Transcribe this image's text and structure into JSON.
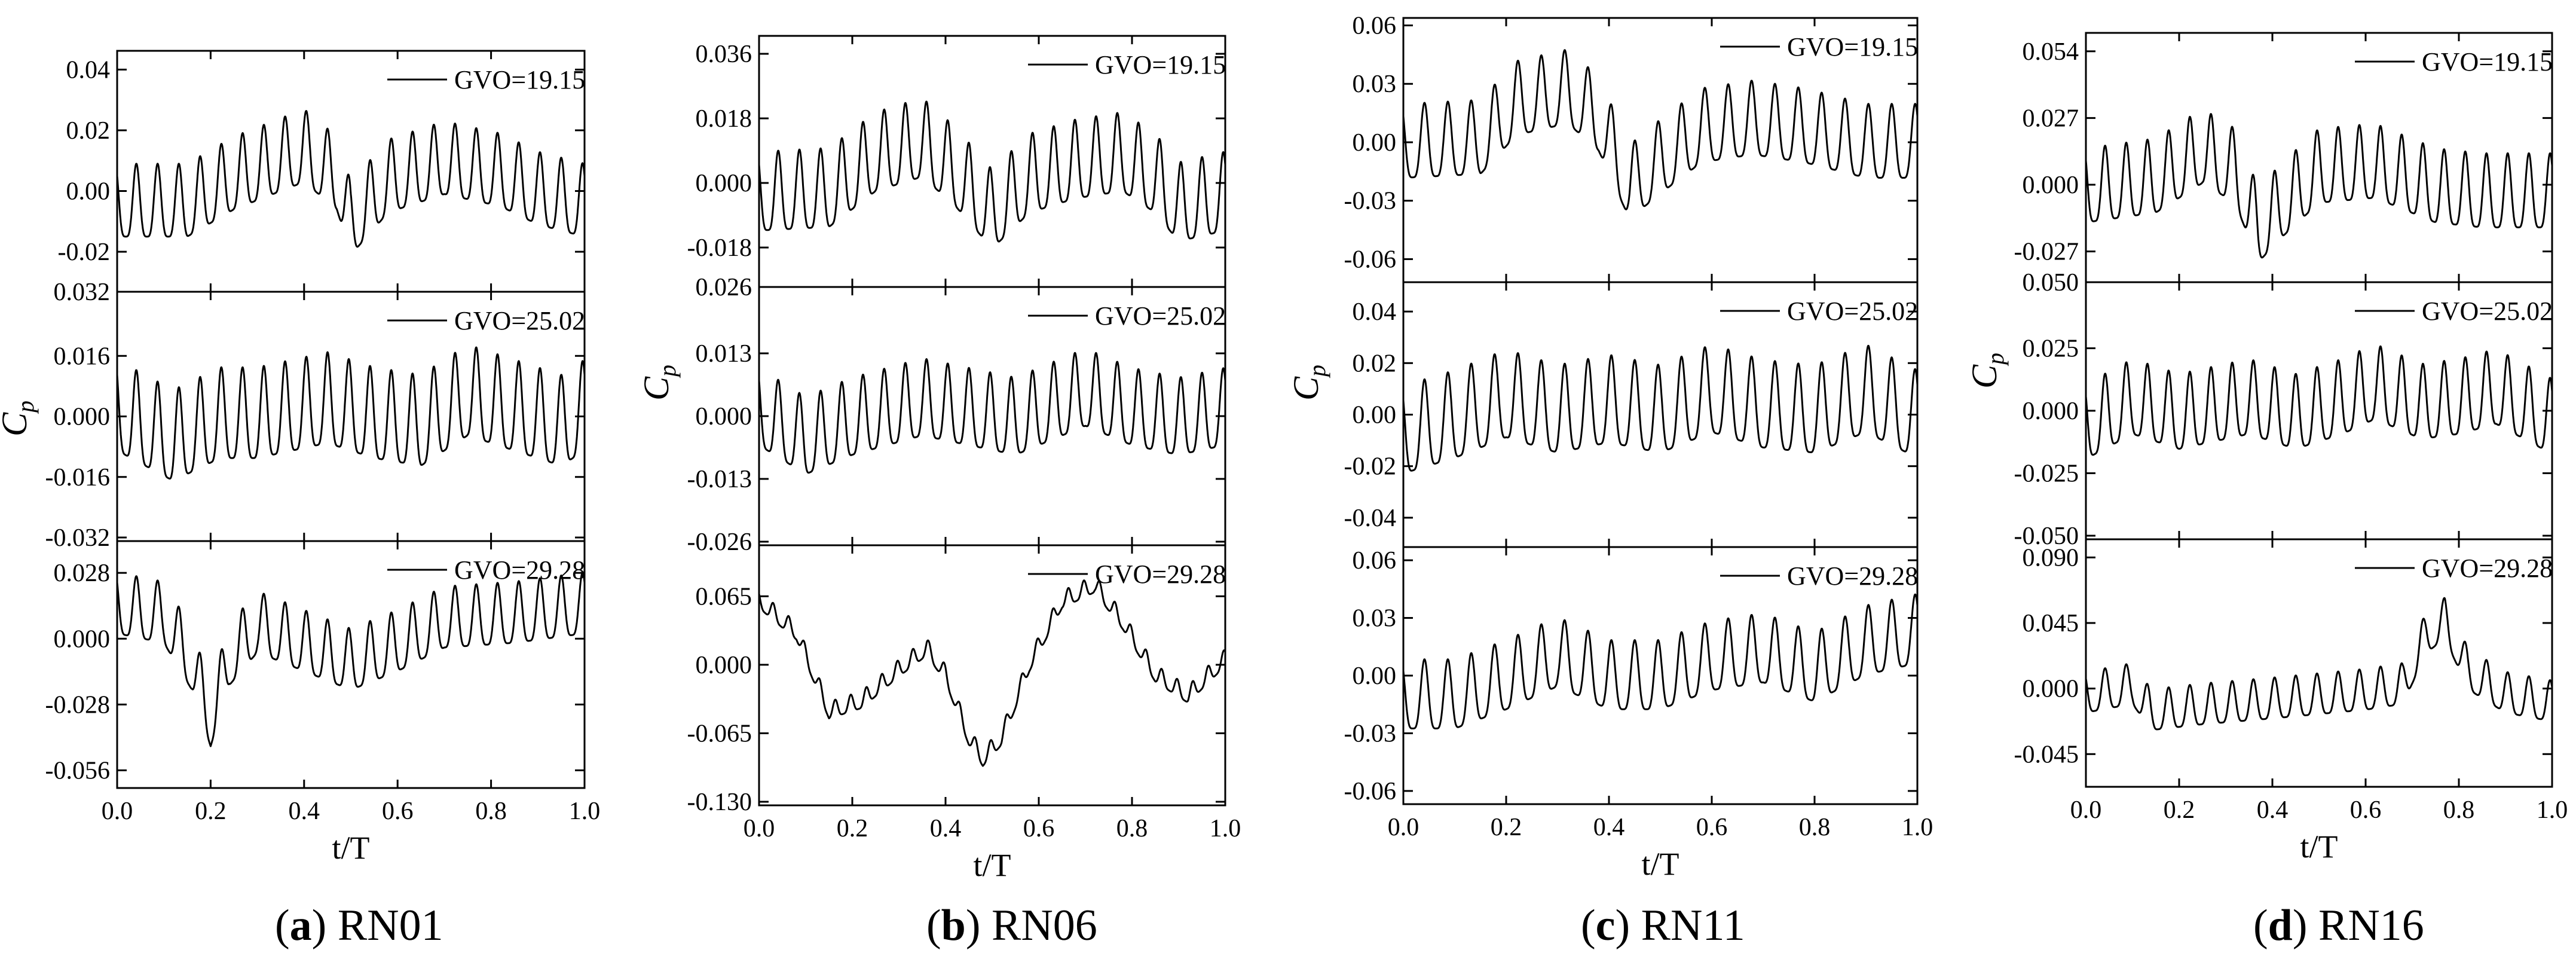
{
  "xlabel": "t/T",
  "ylabel_main": "C",
  "ylabel_sub": "p",
  "chart_data": [
    {
      "type": "line",
      "caption_letter": "(a)",
      "caption_text": "RN01",
      "x_range": [
        0,
        1
      ],
      "x_ticks": [
        0,
        0.2,
        0.4,
        0.6,
        0.8,
        1
      ],
      "x_tick_labels": [
        "0.0",
        "0.2",
        "0.4",
        "0.6",
        "0.8",
        "1.0"
      ],
      "panels": [
        {
          "legend": "GVO=19.15",
          "ylim": [
            -0.032,
            0.045
          ],
          "yticks": [
            -0.02,
            0,
            0.02,
            0.04
          ],
          "ytick_labels": [
            "-0.02",
            "0.00",
            "0.02",
            "0.04"
          ],
          "top_label": "",
          "osc": {
            "n": 22,
            "amp": 0.012,
            "envelope": [
              [
                0,
                -0.006
              ],
              [
                0.15,
                -0.006
              ],
              [
                0.25,
                0.003
              ],
              [
                0.4,
                0.012
              ],
              [
                0.47,
                0.003
              ],
              [
                0.5,
                -0.012
              ],
              [
                0.58,
                0.002
              ],
              [
                0.7,
                0.008
              ],
              [
                0.82,
                0.004
              ],
              [
                0.9,
                -0.002
              ],
              [
                1,
                -0.006
              ]
            ]
          }
        },
        {
          "legend": "GVO=25.02",
          "ylim": [
            -0.032,
            0.032
          ],
          "yticks": [
            -0.032,
            -0.016,
            0,
            0.016
          ],
          "ytick_labels": [
            "-0.032",
            "-0.016",
            "0.000",
            "0.016"
          ],
          "top_label": "0.032",
          "osc": {
            "n": 22,
            "amp": 0.012,
            "envelope": [
              [
                0,
                0.0
              ],
              [
                0.12,
                -0.008
              ],
              [
                0.22,
                -0.002
              ],
              [
                0.3,
                -0.002
              ],
              [
                0.45,
                0.002
              ],
              [
                0.55,
                -0.002
              ],
              [
                0.65,
                -0.004
              ],
              [
                0.75,
                0.004
              ],
              [
                0.85,
                0.0
              ],
              [
                0.95,
                -0.004
              ],
              [
                1,
                0.0
              ]
            ]
          }
        },
        {
          "legend": "GVO=29.28",
          "ylim": [
            -0.062,
            0.04
          ],
          "yticks": [
            -0.056,
            -0.028,
            0,
            0.028
          ],
          "ytick_labels": [
            "-0.056",
            "-0.028",
            "0.000",
            "0.028"
          ],
          "top_label": "",
          "osc": {
            "n": 22,
            "amp": 0.013,
            "envelope": [
              [
                0,
                0.012
              ],
              [
                0.1,
                0.008
              ],
              [
                0.16,
                -0.012
              ],
              [
                0.2,
                -0.036
              ],
              [
                0.24,
                -0.01
              ],
              [
                0.3,
                0.004
              ],
              [
                0.4,
                -0.004
              ],
              [
                0.5,
                -0.012
              ],
              [
                0.6,
                -0.004
              ],
              [
                0.7,
                0.006
              ],
              [
                0.85,
                0.008
              ],
              [
                1,
                0.012
              ]
            ]
          }
        }
      ]
    },
    {
      "type": "line",
      "caption_letter": "(b)",
      "caption_text": "RN06",
      "x_range": [
        0,
        1
      ],
      "x_ticks": [
        0,
        0.2,
        0.4,
        0.6,
        0.8,
        1
      ],
      "x_tick_labels": [
        "0.0",
        "0.2",
        "0.4",
        "0.6",
        "0.8",
        "1.0"
      ],
      "panels": [
        {
          "legend": "GVO=19.15",
          "ylim": [
            -0.028,
            0.04
          ],
          "yticks": [
            -0.018,
            0,
            0.018,
            0.036
          ],
          "ytick_labels": [
            "-0.018",
            "0.000",
            "0.018",
            "0.036"
          ],
          "top_label": "",
          "osc": {
            "n": 22,
            "amp": 0.011,
            "envelope": [
              [
                0,
                -0.005
              ],
              [
                0.15,
                -0.004
              ],
              [
                0.25,
                0.006
              ],
              [
                0.35,
                0.01
              ],
              [
                0.42,
                0.002
              ],
              [
                0.5,
                -0.01
              ],
              [
                0.58,
                0.0
              ],
              [
                0.68,
                0.004
              ],
              [
                0.78,
                0.006
              ],
              [
                0.85,
                0.0
              ],
              [
                0.9,
                -0.008
              ],
              [
                1,
                -0.005
              ]
            ]
          }
        },
        {
          "legend": "GVO=25.02",
          "ylim": [
            -0.026,
            0.026
          ],
          "yticks": [
            -0.026,
            -0.013,
            0,
            0.013
          ],
          "ytick_labels": [
            "-0.026",
            "-0.013",
            "0.000",
            "0.013"
          ],
          "top_label": "0.026",
          "osc": {
            "n": 22,
            "amp": 0.008,
            "envelope": [
              [
                0,
                0.0
              ],
              [
                0.1,
                -0.006
              ],
              [
                0.2,
                -0.002
              ],
              [
                0.35,
                0.002
              ],
              [
                0.45,
                0.0
              ],
              [
                0.55,
                -0.002
              ],
              [
                0.7,
                0.004
              ],
              [
                0.8,
                0.0
              ],
              [
                0.9,
                -0.002
              ],
              [
                1,
                0.0
              ]
            ]
          }
        },
        {
          "legend": "GVO=29.28",
          "ylim": [
            -0.13,
            0.11
          ],
          "yticks": [
            -0.13,
            -0.065,
            0,
            0.065
          ],
          "ytick_labels": [
            "-0.130",
            "-0.065",
            "0.000",
            "0.065"
          ],
          "top_label": "",
          "osc": {
            "n": 30,
            "amp": 0.008,
            "envelope": [
              [
                0,
                0.06
              ],
              [
                0.08,
                0.03
              ],
              [
                0.15,
                -0.045
              ],
              [
                0.22,
                -0.035
              ],
              [
                0.3,
                -0.005
              ],
              [
                0.36,
                0.015
              ],
              [
                0.4,
                -0.01
              ],
              [
                0.45,
                -0.07
              ],
              [
                0.48,
                -0.09
              ],
              [
                0.52,
                -0.07
              ],
              [
                0.58,
                0.0
              ],
              [
                0.65,
                0.06
              ],
              [
                0.72,
                0.075
              ],
              [
                0.78,
                0.04
              ],
              [
                0.85,
                -0.01
              ],
              [
                0.92,
                -0.03
              ],
              [
                1,
                0.005
              ]
            ]
          }
        }
      ]
    },
    {
      "type": "line",
      "caption_letter": "(c)",
      "caption_text": "RN11",
      "x_range": [
        0,
        1
      ],
      "x_ticks": [
        0,
        0.2,
        0.4,
        0.6,
        0.8,
        1
      ],
      "x_tick_labels": [
        "0.0",
        "0.2",
        "0.4",
        "0.6",
        "0.8",
        "1.0"
      ],
      "panels": [
        {
          "legend": "GVO=19.15",
          "ylim": [
            -0.07,
            0.062
          ],
          "yticks": [
            -0.06,
            -0.03,
            0,
            0.03,
            0.06
          ],
          "ytick_labels": [
            "-0.06",
            "-0.03",
            "0.00",
            "0.03",
            "0.06"
          ],
          "top_label": "",
          "osc": {
            "n": 22,
            "amp": 0.019,
            "envelope": [
              [
                0,
                -0.004
              ],
              [
                0.15,
                -0.002
              ],
              [
                0.22,
                0.018
              ],
              [
                0.32,
                0.024
              ],
              [
                0.38,
                0.01
              ],
              [
                0.44,
                -0.025
              ],
              [
                0.5,
                -0.012
              ],
              [
                0.58,
                0.004
              ],
              [
                0.68,
                0.008
              ],
              [
                0.78,
                0.004
              ],
              [
                0.9,
                -0.004
              ],
              [
                1,
                -0.004
              ]
            ]
          }
        },
        {
          "legend": "GVO=25.02",
          "ylim": [
            -0.05,
            0.05
          ],
          "yticks": [
            -0.04,
            -0.02,
            0,
            0.02,
            0.04
          ],
          "ytick_labels": [
            "-0.04",
            "-0.02",
            "0.00",
            "0.02",
            "0.04"
          ],
          "top_label": "",
          "osc": {
            "n": 22,
            "amp": 0.017,
            "envelope": [
              [
                0,
                -0.01
              ],
              [
                0.1,
                -0.004
              ],
              [
                0.2,
                0.004
              ],
              [
                0.3,
                -0.002
              ],
              [
                0.4,
                0.002
              ],
              [
                0.5,
                -0.002
              ],
              [
                0.6,
                0.006
              ],
              [
                0.7,
                0.0
              ],
              [
                0.8,
                -0.002
              ],
              [
                0.9,
                0.006
              ],
              [
                1,
                -0.004
              ]
            ]
          }
        },
        {
          "legend": "GVO=29.28",
          "ylim": [
            -0.065,
            0.065
          ],
          "yticks": [
            -0.06,
            -0.03,
            0,
            0.03,
            0.06
          ],
          "ytick_labels": [
            "-0.06",
            "-0.03",
            "0.00",
            "0.03",
            "0.06"
          ],
          "top_label": "",
          "osc": {
            "n": 22,
            "amp": 0.018,
            "envelope": [
              [
                0,
                -0.014
              ],
              [
                0.1,
                -0.014
              ],
              [
                0.2,
                -0.004
              ],
              [
                0.3,
                0.008
              ],
              [
                0.4,
                -0.004
              ],
              [
                0.5,
                -0.004
              ],
              [
                0.6,
                0.006
              ],
              [
                0.7,
                0.01
              ],
              [
                0.8,
                0.0
              ],
              [
                0.9,
                0.014
              ],
              [
                1,
                0.02
              ]
            ]
          }
        }
      ]
    },
    {
      "type": "line",
      "caption_letter": "(d)",
      "caption_text": "RN16",
      "x_range": [
        0,
        1
      ],
      "x_ticks": [
        0,
        0.2,
        0.4,
        0.6,
        0.8,
        1
      ],
      "x_tick_labels": [
        "0.0",
        "0.2",
        "0.4",
        "0.6",
        "0.8",
        "1.0"
      ],
      "panels": [
        {
          "legend": "GVO=19.15",
          "ylim": [
            -0.038,
            0.06
          ],
          "yticks": [
            -0.027,
            0,
            0.027,
            0.054
          ],
          "ytick_labels": [
            "-0.027",
            "0.000",
            "0.027",
            "0.054"
          ],
          "top_label": "",
          "osc": {
            "n": 22,
            "amp": 0.015,
            "envelope": [
              [
                0,
                -0.004
              ],
              [
                0.15,
                0.0
              ],
              [
                0.25,
                0.012
              ],
              [
                0.32,
                0.004
              ],
              [
                0.37,
                -0.02
              ],
              [
                0.42,
                -0.01
              ],
              [
                0.5,
                0.004
              ],
              [
                0.62,
                0.006
              ],
              [
                0.75,
                -0.004
              ],
              [
                0.85,
                -0.006
              ],
              [
                1,
                -0.006
              ]
            ]
          }
        },
        {
          "legend": "GVO=25.02",
          "ylim": [
            -0.05,
            0.05
          ],
          "yticks": [
            -0.05,
            -0.025,
            0,
            0.025
          ],
          "ytick_labels": [
            "-0.050",
            "-0.025",
            "0.000",
            "0.025"
          ],
          "top_label": "0.050",
          "osc": {
            "n": 22,
            "amp": 0.015,
            "envelope": [
              [
                0,
                -0.008
              ],
              [
                0.1,
                0.002
              ],
              [
                0.2,
                -0.004
              ],
              [
                0.35,
                0.002
              ],
              [
                0.45,
                -0.004
              ],
              [
                0.55,
                0.002
              ],
              [
                0.62,
                0.008
              ],
              [
                0.72,
                0.0
              ],
              [
                0.8,
                0.002
              ],
              [
                0.88,
                0.006
              ],
              [
                1,
                -0.006
              ]
            ]
          }
        },
        {
          "legend": "GVO=29.28",
          "ylim": [
            -0.065,
            0.1
          ],
          "yticks": [
            -0.045,
            0,
            0.045,
            0.09
          ],
          "ytick_labels": [
            "-0.045",
            "0.000",
            "0.045",
            "0.090"
          ],
          "top_label": "",
          "osc": {
            "n": 22,
            "amp": 0.014,
            "envelope": [
              [
                0,
                -0.006
              ],
              [
                0.1,
                0.0
              ],
              [
                0.14,
                -0.018
              ],
              [
                0.25,
                -0.014
              ],
              [
                0.4,
                -0.01
              ],
              [
                0.6,
                -0.004
              ],
              [
                0.68,
                0.0
              ],
              [
                0.73,
                0.035
              ],
              [
                0.77,
                0.045
              ],
              [
                0.82,
                0.01
              ],
              [
                0.9,
                -0.006
              ],
              [
                1,
                -0.012
              ]
            ]
          }
        }
      ]
    }
  ]
}
